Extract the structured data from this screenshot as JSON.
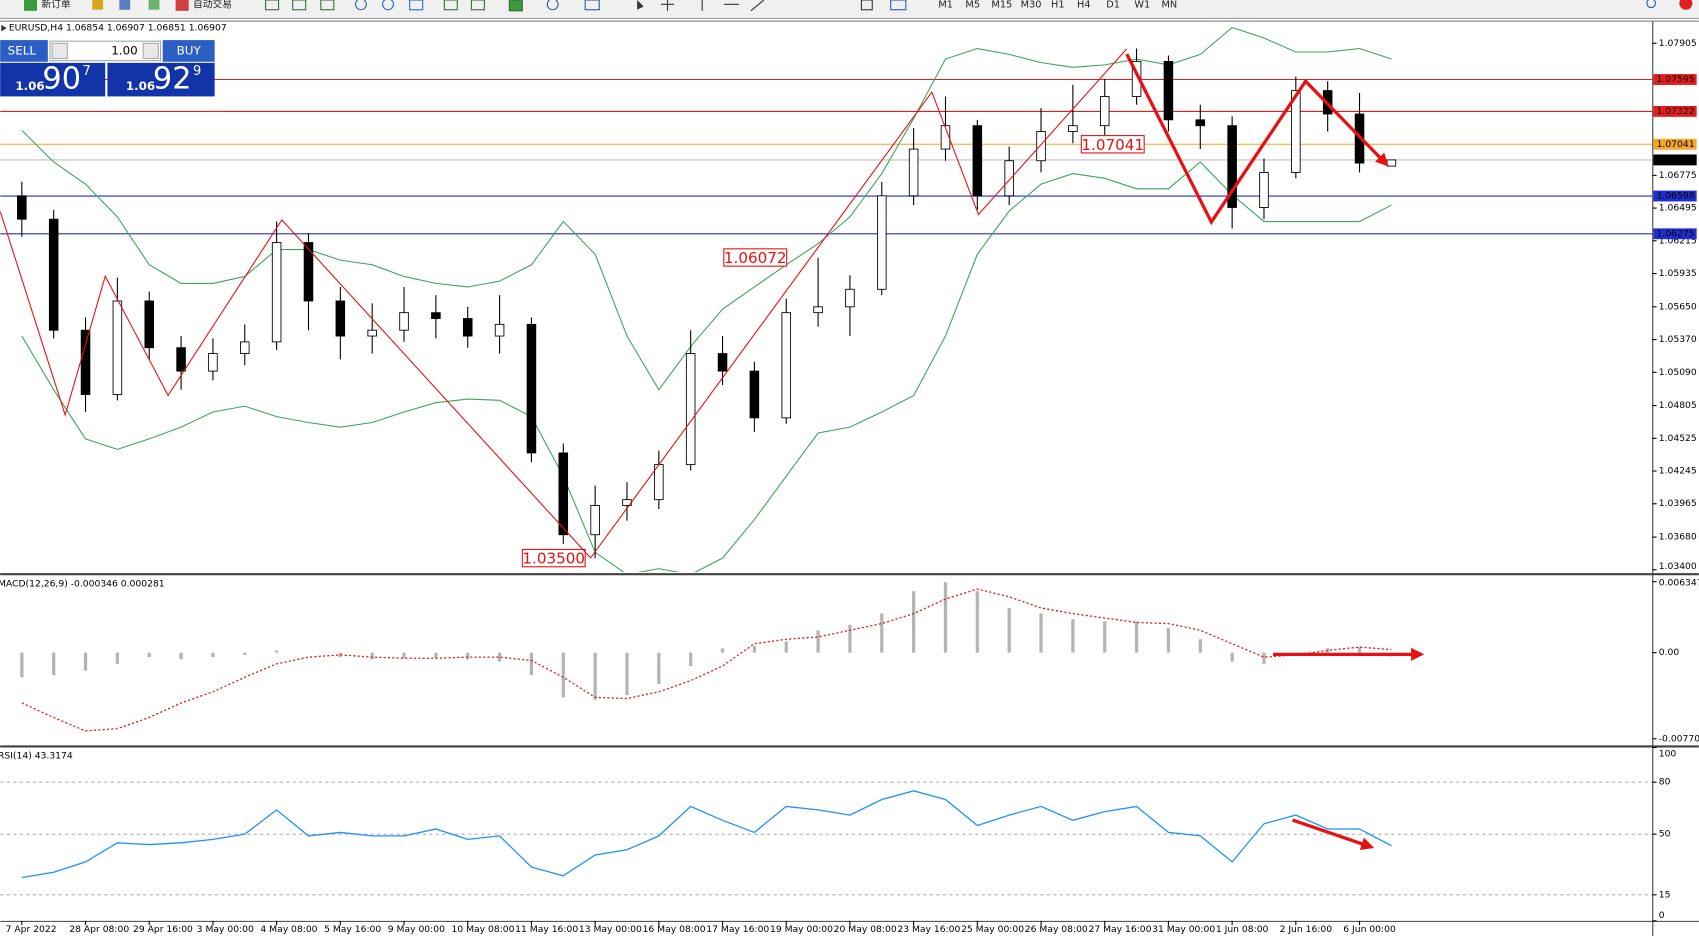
{
  "toolbar": {
    "new_order": "新订单",
    "auto_trading": "自动交易",
    "timeframes": [
      "M1",
      "M5",
      "M15",
      "M30",
      "H1",
      "H4",
      "D1",
      "W1",
      "MN"
    ]
  },
  "trade_panel": {
    "sell": "SELL",
    "buy": "BUY",
    "lots": "1.00",
    "bid": {
      "prefix": "1.06",
      "pips": "90",
      "fraction": "7"
    },
    "ask": {
      "prefix": "1.06",
      "pips": "92",
      "fraction": "9"
    }
  },
  "chart_data": [
    {
      "type": "candlestick",
      "title": "EURUSD,H4  1.06854 1.06907 1.06851 1.06907",
      "categories": [
        "7 Apr 2022",
        null,
        "28 Apr 08:00",
        null,
        "29 Apr 16:00",
        null,
        "3 May 00:00",
        null,
        "4 May 08:00",
        null,
        "5 May 16:00",
        null,
        "9 May 00:00",
        null,
        "10 May 08:00",
        null,
        "11 May 16:00",
        null,
        "13 May 00:00",
        null,
        "16 May 08:00",
        null,
        "17 May 16:00",
        null,
        "19 May 00:00",
        null,
        "20 May 08:00",
        null,
        "23 May 16:00",
        null,
        "25 May 00:00",
        null,
        "26 May 08:00",
        null,
        "27 May 16:00",
        null,
        "31 May 00:00",
        null,
        "1 Jun 08:00",
        null,
        "2 Jun 16:00",
        null,
        "6 Jun 00:00",
        null
      ],
      "open": [
        1.066,
        1.064,
        1.0545,
        1.049,
        1.057,
        1.053,
        1.051,
        1.0525,
        1.0535,
        1.062,
        1.057,
        1.054,
        1.0545,
        1.056,
        1.0555,
        1.054,
        1.055,
        1.044,
        1.037,
        1.0395,
        1.04,
        1.043,
        1.0525,
        1.051,
        1.047,
        1.056,
        1.0565,
        1.058,
        1.066,
        1.07,
        1.072,
        1.066,
        1.069,
        1.0715,
        1.072,
        1.0745,
        1.0775,
        1.0725,
        1.072,
        1.065,
        1.068,
        1.075,
        1.073,
        1.06854
      ],
      "high": [
        1.0672,
        1.0648,
        1.0556,
        1.059,
        1.0578,
        1.054,
        1.0538,
        1.055,
        1.0638,
        1.0628,
        1.0582,
        1.0568,
        1.0582,
        1.0575,
        1.0565,
        1.0575,
        1.0556,
        1.0448,
        1.0412,
        1.0415,
        1.0442,
        1.0545,
        1.054,
        1.0518,
        1.0572,
        1.0607,
        1.0592,
        1.0672,
        1.0718,
        1.0745,
        1.0725,
        1.0702,
        1.0735,
        1.0755,
        1.076,
        1.0786,
        1.078,
        1.0738,
        1.0728,
        1.0692,
        1.0762,
        1.0758,
        1.0748,
        1.06907
      ],
      "low": [
        1.0625,
        1.0538,
        1.0475,
        1.0485,
        1.052,
        1.0494,
        1.0502,
        1.0515,
        1.0528,
        1.0545,
        1.052,
        1.0525,
        1.0535,
        1.0538,
        1.053,
        1.0525,
        1.0432,
        1.0362,
        1.035,
        1.0382,
        1.0392,
        1.0425,
        1.0498,
        1.0458,
        1.0465,
        1.0548,
        1.054,
        1.0575,
        1.0652,
        1.069,
        1.0648,
        1.0652,
        1.068,
        1.0705,
        1.0712,
        1.0738,
        1.0715,
        1.07,
        1.0632,
        1.064,
        1.0675,
        1.0715,
        1.068,
        1.06851
      ],
      "close": [
        1.064,
        1.0545,
        1.049,
        1.057,
        1.053,
        1.051,
        1.0525,
        1.0535,
        1.062,
        1.057,
        1.054,
        1.0545,
        1.056,
        1.0555,
        1.054,
        1.055,
        1.044,
        1.037,
        1.0395,
        1.04,
        1.043,
        1.0525,
        1.051,
        1.047,
        1.056,
        1.0565,
        1.058,
        1.066,
        1.07,
        1.072,
        1.066,
        1.069,
        1.0715,
        1.072,
        1.0745,
        1.0775,
        1.0725,
        1.072,
        1.065,
        1.068,
        1.075,
        1.073,
        1.0688,
        1.06907
      ],
      "upper_band": [
        1.0716,
        1.0689,
        1.067,
        1.0642,
        1.0601,
        1.0585,
        1.0585,
        1.0591,
        1.0614,
        1.0614,
        1.0605,
        1.0601,
        1.0591,
        1.0585,
        1.0582,
        1.0587,
        1.0601,
        1.0638,
        1.061,
        1.054,
        1.0494,
        1.0531,
        1.0563,
        1.0582,
        1.0601,
        1.0619,
        1.0642,
        1.0679,
        1.0726,
        1.0777,
        1.0786,
        1.0781,
        1.0774,
        1.077,
        1.0772,
        1.0777,
        1.0772,
        1.0781,
        1.0804,
        1.0795,
        1.0783,
        1.0783,
        1.0786,
        1.0777
      ],
      "lower_band": [
        1.054,
        1.0494,
        1.0452,
        1.0443,
        1.0452,
        1.0462,
        1.0475,
        1.048,
        1.0471,
        1.0466,
        1.0462,
        1.0466,
        1.0475,
        1.0483,
        1.0486,
        1.0485,
        1.0471,
        1.042,
        1.0355,
        1.0336,
        1.0341,
        1.0336,
        1.035,
        1.0383,
        1.042,
        1.0457,
        1.0462,
        1.0475,
        1.0489,
        1.054,
        1.061,
        1.0647,
        1.067,
        1.0679,
        1.0675,
        1.0666,
        1.0666,
        1.0689,
        1.0661,
        1.0638,
        1.0638,
        1.0638,
        1.0638,
        1.0652
      ],
      "up_color": "#ffffff",
      "down_color": "#000000",
      "band_color": "#3aa65a",
      "levels": [
        {
          "value": 1.07595,
          "color": "#e31c1c"
        },
        {
          "value": 1.07322,
          "color": "#e31c1c"
        },
        {
          "value": 1.07041,
          "color": "#f5a623"
        },
        {
          "value": 1.06598,
          "color": "#1f2fcf"
        },
        {
          "value": 1.06275,
          "color": "#1f2fcf"
        }
      ],
      "last": 1.06907,
      "annotations": [
        {
          "value": 1.035,
          "label": "1.03500"
        },
        {
          "value": 1.06072,
          "label": "1.06072"
        },
        {
          "value": 1.07041,
          "label": "1.07041"
        }
      ],
      "ylim": [
        1.03381,
        1.0809
      ],
      "yticks": [
        1.07905,
        1.06775,
        1.06495,
        1.06215,
        1.05935,
        {
          "value": 1.0565,
          "label": "1.05650"
        },
        {
          "value": 1.0537,
          "label": "1.05370"
        },
        {
          "value": 1.0509,
          "label": "1.05090"
        },
        1.04805,
        1.04525,
        1.04245,
        1.03965,
        {
          "value": 1.0368,
          "label": "1.03680"
        },
        {
          "value": 1.034,
          "label": "1.03400"
        }
      ],
      "grid": false
    },
    {
      "type": "macd",
      "title": "MACD(12,26,9) -0.000346 0.000281",
      "histogram": [
        -0.0022,
        -0.002,
        -0.0016,
        -0.001,
        -0.0004,
        -0.0006,
        -0.0004,
        -0.0002,
        0.0002,
        0.0,
        -0.0004,
        -0.0006,
        -0.0005,
        -0.0005,
        -0.0006,
        -0.0008,
        -0.002,
        -0.004,
        -0.0042,
        -0.0038,
        -0.0028,
        -0.0012,
        0.0004,
        0.0006,
        0.001,
        0.002,
        0.0025,
        0.0035,
        0.0055,
        0.0063,
        0.0055,
        0.004,
        0.0035,
        0.003,
        0.0028,
        0.0028,
        0.0022,
        0.0012,
        -0.0008,
        -0.001,
        0.0,
        0.0004,
        0.0005,
        -0.000346
      ],
      "signal": [
        -0.0045,
        -0.0058,
        -0.007,
        -0.0068,
        -0.0058,
        -0.0045,
        -0.0035,
        -0.0022,
        -0.001,
        -0.0004,
        -0.0002,
        -0.0004,
        -0.0005,
        -0.0005,
        -0.0004,
        -0.0004,
        -0.0007,
        -0.0022,
        -0.004,
        -0.0041,
        -0.0035,
        -0.0025,
        -0.0012,
        0.0008,
        0.0012,
        0.0014,
        0.002,
        0.0026,
        0.0035,
        0.0048,
        0.0057,
        0.005,
        0.004,
        0.0035,
        0.0031,
        0.0027,
        0.0026,
        0.002,
        0.0008,
        -0.0004,
        -0.0002,
        0.0002,
        0.0005,
        0.000281
      ],
      "histogram_color": "#b4b4b4",
      "signal_color": "#e02020",
      "ylim": [
        -0.00829,
        0.00683
      ],
      "yticks": [
        0.006347,
        {
          "value": 0,
          "label": "0.00"
        },
        -0.007703
      ],
      "grid": false
    },
    {
      "type": "line",
      "title": "RSI(14) 43.3174",
      "values": [
        25,
        28,
        34,
        45,
        44,
        45,
        47,
        50,
        64,
        49,
        51,
        49,
        49,
        53,
        47,
        49,
        31,
        26,
        38,
        41,
        49,
        66,
        58,
        51,
        66,
        64,
        61,
        70,
        75,
        70,
        55,
        61,
        66,
        58,
        63,
        66,
        51,
        49,
        34,
        56,
        61,
        53,
        53,
        43.3174
      ],
      "color": "#1e90ff",
      "ylim": [
        0,
        100
      ],
      "yticks": [
        100,
        80,
        50,
        15,
        0
      ],
      "grid": true
    }
  ]
}
